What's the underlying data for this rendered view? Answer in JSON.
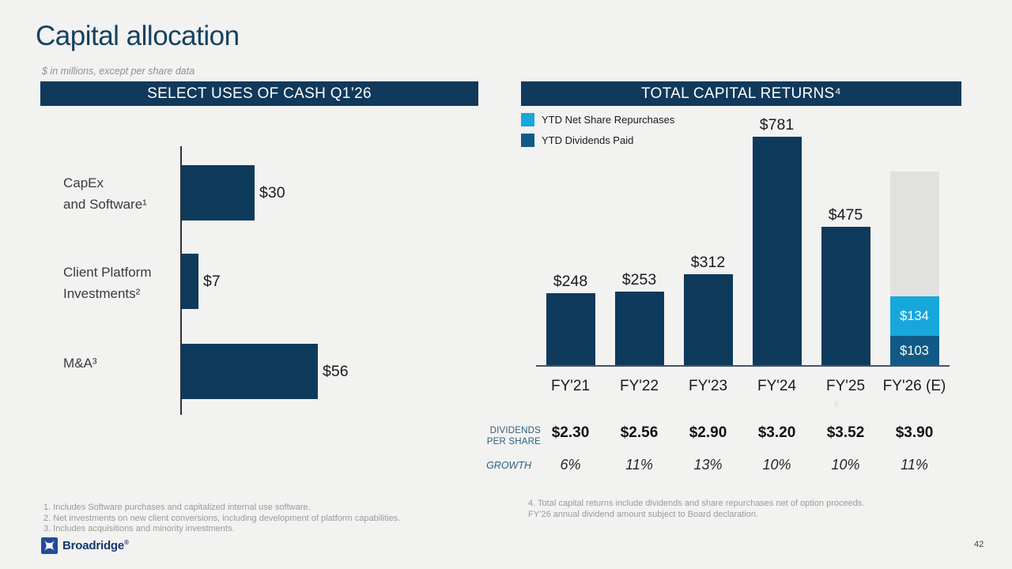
{
  "slide": {
    "title": "Capital allocation",
    "subtitle": "$ in millions, except per share data",
    "page_number": "42",
    "logo": {
      "text": "Broadridge",
      "mark": "®"
    },
    "footnotes_left": [
      "1. Includes Software purchases and capitalized internal use software.",
      "2. Net investments on new client conversions, including development of platform capabilities.",
      "3. Includes acquisitions and minority investments."
    ],
    "footnotes_right": [
      "4. Total capital returns include dividends and share repurchases net of option proceeds.",
      "FY’26 annual dividend amount subject to Board declaration."
    ]
  },
  "colors": {
    "navy_bar": "#0e3a5c",
    "header_bar": "#10395b",
    "ytd_repurchases_light_blue": "#18a7db",
    "ytd_dividends_mid_blue": "#115a87",
    "projected_gray": "#e1e1e0",
    "background": "#f2f2f1",
    "title_navy": "#16425f"
  },
  "chart_data": [
    {
      "type": "bar",
      "orientation": "horizontal",
      "title": "SELECT USES OF CASH Q1’26",
      "units": "$ in millions",
      "xlim": [
        0,
        60
      ],
      "bars": [
        {
          "label_line1": "CapEx",
          "label_line2": "and Software¹",
          "value": 30,
          "value_label": "$30"
        },
        {
          "label_line1": "Client Platform",
          "label_line2": "Investments²",
          "value": 7,
          "value_label": "$7"
        },
        {
          "label_line1": "M&A³",
          "label_line2": "",
          "value": 56,
          "value_label": "$56"
        }
      ]
    },
    {
      "type": "stacked-bar",
      "title": "TOTAL CAPITAL RETURNS⁴",
      "units": "$ in millions",
      "ylim": [
        0,
        800
      ],
      "legend": [
        {
          "label": "YTD Net Share Repurchases",
          "color": "#18a7db"
        },
        {
          "label": "YTD Dividends Paid",
          "color": "#115a87"
        }
      ],
      "columns": [
        {
          "category": "FY'21",
          "total": 248,
          "total_label": "$248",
          "dividends_per_share": "$2.30",
          "growth": "6%"
        },
        {
          "category": "FY'22",
          "total": 253,
          "total_label": "$253",
          "dividends_per_share": "$2.56",
          "growth": "11%"
        },
        {
          "category": "FY'23",
          "total": 312,
          "total_label": "$312",
          "dividends_per_share": "$2.90",
          "growth": "13%"
        },
        {
          "category": "FY'24",
          "total": 781,
          "total_label": "$781",
          "dividends_per_share": "$3.20",
          "growth": "10%"
        },
        {
          "category": "FY'25",
          "total": 475,
          "total_label": "$475",
          "footnote_marker": "6",
          "dividends_per_share": "$3.52",
          "growth": "10%"
        },
        {
          "category": "FY'26 (E)",
          "projected_remainder_unlabeled": 426,
          "net_share_repurchases": 134,
          "net_share_repurchases_label": "$134",
          "dividends_paid": 103,
          "dividends_paid_label": "$103",
          "dividends_per_share": "$3.90",
          "growth": "11%"
        }
      ],
      "row_labels": {
        "dividends_line1": "DIVIDENDS",
        "dividends_line2": "PER SHARE",
        "growth": "GROWTH"
      }
    }
  ]
}
